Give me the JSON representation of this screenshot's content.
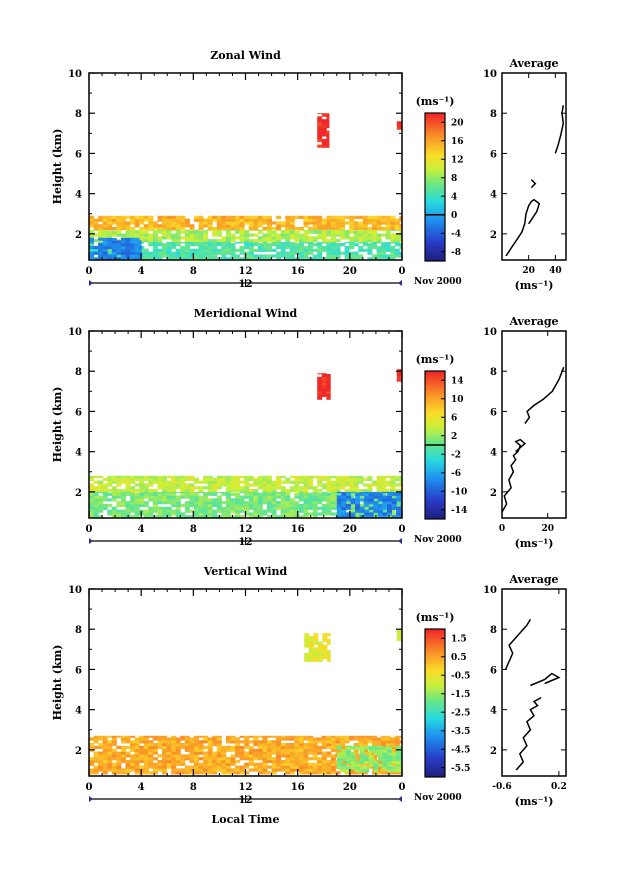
{
  "chart_data": [
    {
      "type": "heatmap",
      "title": "Zonal Wind",
      "ylabel": "Height (km)",
      "ylim": [
        0.7,
        10
      ],
      "yticks": [
        2,
        4,
        6,
        8,
        10
      ],
      "xlim": [
        0,
        24
      ],
      "xticks": [
        "0",
        "4",
        "8",
        "12",
        "16",
        "20",
        "0"
      ],
      "date_axis": {
        "label": "12",
        "month_label": "Nov 2000"
      },
      "colorbar": {
        "unit": "(ms⁻¹)",
        "ticks": [
          "20",
          "16",
          "12",
          "8",
          "4",
          "0",
          "-4",
          "-8"
        ],
        "range": [
          -10,
          22
        ],
        "zero_line": 0
      },
      "regions": [
        {
          "x": [
            0,
            24
          ],
          "y": [
            2.2,
            2.9
          ],
          "value": 15
        },
        {
          "x": [
            0,
            24
          ],
          "y": [
            1.6,
            2.2
          ],
          "value": 9
        },
        {
          "x": [
            0,
            24
          ],
          "y": [
            0.7,
            1.6
          ],
          "value": 5
        },
        {
          "x": [
            0,
            4
          ],
          "y": [
            0.7,
            1.8
          ],
          "value": -2
        },
        {
          "x": [
            17.5,
            18.4
          ],
          "y": [
            6.3,
            8
          ],
          "value": 22
        },
        {
          "x": [
            23.6,
            24
          ],
          "y": [
            7.2,
            7.6
          ],
          "value": 22
        }
      ],
      "profile": {
        "title": "Average",
        "xlabel": "(ms⁻¹)",
        "xlim": [
          0,
          48
        ],
        "xticks": [
          20,
          40
        ],
        "ylim": [
          0.7,
          10
        ],
        "yticks": [
          2,
          4,
          6,
          8,
          10
        ],
        "segments": [
          {
            "x": [
              3,
              7,
              11,
              15,
              17,
              18,
              20,
              22,
              24,
              28,
              26,
              22,
              20
            ],
            "y": [
              0.9,
              1.3,
              1.7,
              2.1,
              2.5,
              3.0,
              3.4,
              3.6,
              3.7,
              3.5,
              3.1,
              2.7,
              2.5
            ]
          },
          {
            "x": [
              22,
              25,
              22
            ],
            "y": [
              4.3,
              4.5,
              4.7
            ]
          },
          {
            "x": [
              40,
              42,
              44,
              46,
              45,
              46
            ],
            "y": [
              6.0,
              6.4,
              6.9,
              7.5,
              8.0,
              8.4
            ]
          }
        ]
      }
    },
    {
      "type": "heatmap",
      "title": "Meridional Wind",
      "ylabel": "Height (km)",
      "ylim": [
        0.7,
        10
      ],
      "yticks": [
        2,
        4,
        6,
        8,
        10
      ],
      "xlim": [
        0,
        24
      ],
      "xticks": [
        "0",
        "4",
        "8",
        "12",
        "16",
        "20",
        "0"
      ],
      "date_axis": {
        "label": "12",
        "month_label": "Nov 2000"
      },
      "colorbar": {
        "unit": "(ms⁻¹)",
        "ticks": [
          "14",
          "10",
          "6",
          "2",
          "-2",
          "-6",
          "-10",
          "-14"
        ],
        "range": [
          -16,
          16
        ],
        "zero_line": 0
      },
      "regions": [
        {
          "x": [
            0,
            24
          ],
          "y": [
            2.0,
            2.8
          ],
          "value": 4
        },
        {
          "x": [
            0,
            24
          ],
          "y": [
            0.7,
            2.0
          ],
          "value": 1
        },
        {
          "x": [
            19,
            24
          ],
          "y": [
            0.7,
            2.0
          ],
          "value": -8
        },
        {
          "x": [
            17.5,
            18.5
          ],
          "y": [
            6.6,
            7.9
          ],
          "value": 16
        },
        {
          "x": [
            23.6,
            24
          ],
          "y": [
            7.5,
            8.1
          ],
          "value": 16
        }
      ],
      "profile": {
        "title": "Average",
        "xlabel": "(ms⁻¹)",
        "xlim": [
          0,
          28
        ],
        "xticks": [
          0,
          20
        ],
        "ylim": [
          0.7,
          10
        ],
        "yticks": [
          2,
          4,
          6,
          8,
          10
        ],
        "segments": [
          {
            "x": [
              0,
              2,
              1,
              4,
              3,
              5,
              4,
              6,
              5,
              7,
              8,
              6,
              8,
              10,
              8,
              6
            ],
            "y": [
              1.0,
              1.4,
              1.8,
              2.2,
              2.6,
              3.0,
              3.3,
              3.6,
              3.8,
              4.0,
              4.3,
              4.5,
              4.6,
              4.4,
              4.2,
              4.0
            ]
          },
          {
            "x": [
              10,
              12,
              11,
              14,
              18,
              22,
              25,
              27
            ],
            "y": [
              5.4,
              5.7,
              6.0,
              6.3,
              6.6,
              7.0,
              7.6,
              8.2
            ]
          }
        ]
      }
    },
    {
      "type": "heatmap",
      "title": "Vertical Wind",
      "ylabel": "Height (km)",
      "xlabel": "Local Time",
      "ylim": [
        0.7,
        10
      ],
      "yticks": [
        2,
        4,
        6,
        8,
        10
      ],
      "xlim": [
        0,
        24
      ],
      "xticks": [
        "0",
        "4",
        "8",
        "12",
        "16",
        "20",
        "0"
      ],
      "date_axis": {
        "label": "12",
        "month_label": "Nov 2000"
      },
      "colorbar": {
        "unit": "(ms⁻¹)",
        "ticks": [
          "1.5",
          "0.5",
          "-0.5",
          "-1.5",
          "-2.5",
          "-3.5",
          "-4.5",
          "-5.5"
        ],
        "range": [
          -6.5,
          2.0
        ]
      },
      "regions": [
        {
          "x": [
            0,
            24
          ],
          "y": [
            0.8,
            2.7
          ],
          "value": 0.3
        },
        {
          "x": [
            19,
            24
          ],
          "y": [
            0.9,
            2.2
          ],
          "value": -1.8
        },
        {
          "x": [
            16.5,
            18.5
          ],
          "y": [
            6.4,
            7.8
          ],
          "value": -0.8
        },
        {
          "x": [
            23.6,
            24
          ],
          "y": [
            7.3,
            8.0
          ],
          "value": -0.9
        }
      ],
      "profile": {
        "title": "Average",
        "xlabel": "(ms⁻¹)",
        "xlim": [
          -0.6,
          0.3
        ],
        "xticks": [
          -0.6,
          0.2
        ],
        "ylim": [
          0.7,
          10
        ],
        "yticks": [
          2,
          4,
          6,
          8,
          10
        ],
        "segments": [
          {
            "x": [
              -0.4,
              -0.3,
              -0.35,
              -0.25,
              -0.3,
              -0.2,
              -0.25,
              -0.15,
              -0.2,
              -0.1,
              -0.15,
              -0.05
            ],
            "y": [
              1.0,
              1.4,
              1.8,
              2.2,
              2.6,
              3.0,
              3.4,
              3.7,
              4.0,
              4.2,
              4.4,
              4.6
            ]
          },
          {
            "x": [
              -0.2,
              0.0,
              0.1,
              0.2,
              0.0
            ],
            "y": [
              5.2,
              5.5,
              5.8,
              5.6,
              5.3
            ]
          },
          {
            "x": [
              -0.55,
              -0.5,
              -0.45,
              -0.5,
              -0.4,
              -0.3,
              -0.25,
              -0.2
            ],
            "y": [
              6.0,
              6.4,
              6.8,
              7.2,
              7.6,
              8.0,
              8.2,
              8.5
            ]
          }
        ]
      }
    }
  ]
}
